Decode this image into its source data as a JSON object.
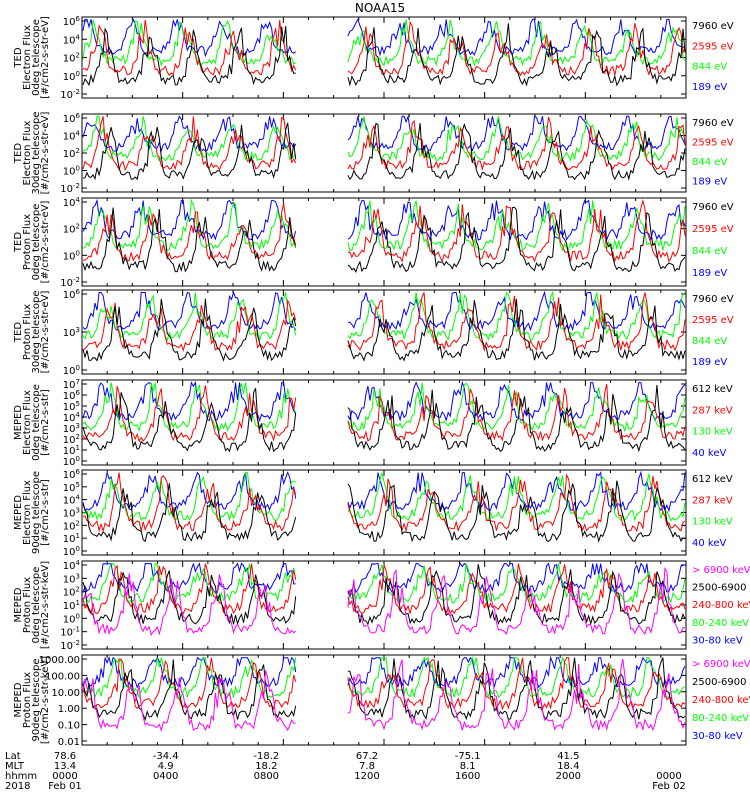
{
  "title": "NOAA15",
  "colors": {
    "blue": "#0000ff",
    "red": "#ff0000",
    "green": "#00ff00",
    "black": "#000000",
    "magenta": "#ff00ff"
  },
  "chart_data": [
    {
      "type": "line",
      "ylog": true,
      "ylim": [
        0.001,
        1000000
      ],
      "ylabel": [
        "TED",
        "Electron Flux",
        "0deg telescope",
        "[#/cm2-s-str-eV]"
      ],
      "yticks": [
        "10^6",
        "10^4",
        "10^2",
        "10^0",
        "10^-2"
      ],
      "series": [
        {
          "name": "7960 eV",
          "color": "#000000"
        },
        {
          "name": "2595 eV",
          "color": "#ff0000"
        },
        {
          "name": "844 eV",
          "color": "#00ff00"
        },
        {
          "name": "189 eV",
          "color": "#0000ff"
        }
      ]
    },
    {
      "type": "line",
      "ylog": true,
      "ylim": [
        0.001,
        1000000
      ],
      "ylabel": [
        "TED",
        "Electron Flux",
        "30deg telescope",
        "[#/cm2-s-str-eV]"
      ],
      "yticks": [
        "10^6",
        "10^4",
        "10^2",
        "10^0",
        "10^-2"
      ],
      "series": [
        {
          "name": "7960 eV",
          "color": "#000000"
        },
        {
          "name": "2595 eV",
          "color": "#ff0000"
        },
        {
          "name": "844 eV",
          "color": "#00ff00"
        },
        {
          "name": "189 eV",
          "color": "#0000ff"
        }
      ]
    },
    {
      "type": "line",
      "ylog": true,
      "ylim": [
        0.001,
        100000
      ],
      "ylabel": [
        "TED",
        "Proton Flux",
        "0deg telescope",
        "[#/cm2-s-str-eV]"
      ],
      "yticks": [
        "10^4",
        "10^2",
        "10^0",
        "10^-2"
      ],
      "series": [
        {
          "name": "7960 eV",
          "color": "#000000"
        },
        {
          "name": "2595 eV",
          "color": "#ff0000"
        },
        {
          "name": "844 eV",
          "color": "#00ff00"
        },
        {
          "name": "189 eV",
          "color": "#0000ff"
        }
      ]
    },
    {
      "type": "line",
      "ylog": true,
      "ylim": [
        0.01,
        1000000
      ],
      "ylabel": [
        "TED",
        "Proton Flux",
        "30deg telescope",
        "[#/cm2-s-str-eV]"
      ],
      "yticks": [
        "10^6",
        "10^3",
        "10^0"
      ],
      "series": [
        {
          "name": "7960 eV",
          "color": "#000000"
        },
        {
          "name": "2595 eV",
          "color": "#ff0000"
        },
        {
          "name": "844 eV",
          "color": "#00ff00"
        },
        {
          "name": "189 eV",
          "color": "#0000ff"
        }
      ]
    },
    {
      "type": "line",
      "ylog": true,
      "ylim": [
        1,
        10000000
      ],
      "ylabel": [
        "MEPED",
        "Electron Flux",
        "0deg telescope",
        "[#/cm2-s-str]"
      ],
      "yticks": [
        "10^7",
        "10^6",
        "10^5",
        "10^4",
        "10^3",
        "10^2",
        "10^1",
        "10^0"
      ],
      "series": [
        {
          "name": "612 keV",
          "color": "#000000"
        },
        {
          "name": "287 keV",
          "color": "#ff0000"
        },
        {
          "name": "130 keV",
          "color": "#00ff00"
        },
        {
          "name": "40 keV",
          "color": "#0000ff"
        }
      ]
    },
    {
      "type": "line",
      "ylog": true,
      "ylim": [
        1,
        10000000
      ],
      "ylabel": [
        "MEPED",
        "Electron Flux",
        "90deg telescope",
        "[#/cm2-s-str]"
      ],
      "yticks": [
        "10^6",
        "10^5",
        "10^4",
        "10^3",
        "10^2",
        "10^1",
        "10^0"
      ],
      "series": [
        {
          "name": "612 keV",
          "color": "#000000"
        },
        {
          "name": "287 keV",
          "color": "#ff0000"
        },
        {
          "name": "130 keV",
          "color": "#00ff00"
        },
        {
          "name": "40 keV",
          "color": "#0000ff"
        }
      ]
    },
    {
      "type": "line",
      "ylog": true,
      "ylim": [
        0.01,
        10000
      ],
      "ylabel": [
        "MEPED",
        "Proton Flux",
        "0deg telescope",
        "[#/cm2-s-str-keV]"
      ],
      "yticks": [
        "10^4",
        "10^3",
        "10^2",
        "10^1",
        "10^0",
        "10^-1",
        "10^-2"
      ],
      "series": [
        {
          "name": "> 6900 keV",
          "color": "#ff00ff"
        },
        {
          "name": "2500-6900",
          "color": "#000000"
        },
        {
          "name": "240-800 keV",
          "color": "#ff0000"
        },
        {
          "name": "80-240 keV",
          "color": "#00ff00"
        },
        {
          "name": "30-80 keV",
          "color": "#0000ff"
        }
      ]
    },
    {
      "type": "line",
      "ylog": true,
      "ylim": [
        0.01,
        1000
      ],
      "ylabel": [
        "MEPED",
        "Proton Flux",
        "90deg telescope",
        "[#/cm2-s-str-keV]"
      ],
      "yticks": [
        "1000.00",
        "100.00",
        "10.00",
        "1.00",
        "0.10",
        "0.01"
      ],
      "series": [
        {
          "name": "> 6900 keV",
          "color": "#ff00ff"
        },
        {
          "name": "2500-6900",
          "color": "#000000"
        },
        {
          "name": "240-800 keV",
          "color": "#ff0000"
        },
        {
          "name": "80-240 keV",
          "color": "#00ff00"
        },
        {
          "name": "30-80 keV",
          "color": "#0000ff"
        }
      ]
    }
  ],
  "footer": {
    "labels": [
      "Lat",
      "MLT",
      "hhmm",
      "2018"
    ],
    "columns": [
      {
        "lat": "78.6",
        "mlt": "13.4",
        "hhmm": "0000",
        "date": "Feb 01"
      },
      {
        "lat": "-34.4",
        "mlt": "4.9",
        "hhmm": "0400",
        "date": ""
      },
      {
        "lat": "-18.2",
        "mlt": "18.2",
        "hhmm": "0800",
        "date": ""
      },
      {
        "lat": "67.2",
        "mlt": "7.8",
        "hhmm": "1200",
        "date": ""
      },
      {
        "lat": "-75.1",
        "mlt": "8.1",
        "hhmm": "1600",
        "date": ""
      },
      {
        "lat": "41.5",
        "mlt": "18.4",
        "hhmm": "2000",
        "date": ""
      },
      {
        "lat": "",
        "mlt": "",
        "hhmm": "0000",
        "date": "Feb 02"
      }
    ]
  }
}
